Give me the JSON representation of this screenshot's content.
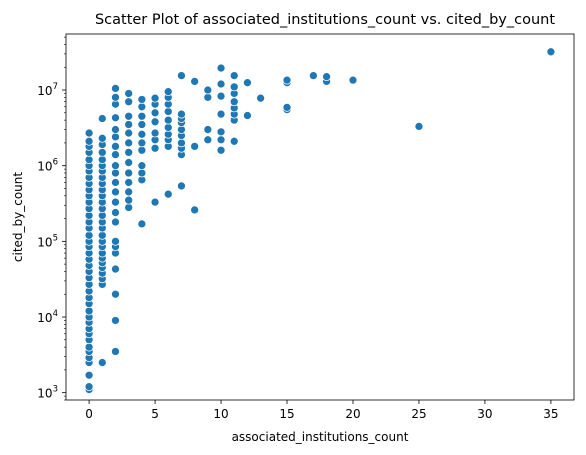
{
  "chart_data": {
    "type": "scatter",
    "title": "Scatter Plot of associated_institutions_count vs. cited_by_count",
    "xlabel": "associated_institutions_count",
    "ylabel": "cited_by_count",
    "x_ticks": [
      0,
      5,
      10,
      15,
      20,
      25,
      30,
      35
    ],
    "y_ticks": [
      1000,
      10000,
      100000,
      1000000,
      10000000
    ],
    "y_tick_labels": [
      {
        "base": "10",
        "exp": "3"
      },
      {
        "base": "10",
        "exp": "4"
      },
      {
        "base": "10",
        "exp": "5"
      },
      {
        "base": "10",
        "exp": "6"
      },
      {
        "base": "10",
        "exp": "7"
      }
    ],
    "xlim": [
      -1.75,
      36.75
    ],
    "ylim": [
      800,
      55000000
    ],
    "y_scale": "log",
    "grid": false,
    "marker_color": "#1f77b4",
    "points": [
      {
        "x": 0,
        "y": 1100
      },
      {
        "x": 0,
        "y": 1200
      },
      {
        "x": 0,
        "y": 1700
      },
      {
        "x": 0,
        "y": 2500
      },
      {
        "x": 0,
        "y": 2900
      },
      {
        "x": 0,
        "y": 3500
      },
      {
        "x": 0,
        "y": 4000
      },
      {
        "x": 0,
        "y": 5000
      },
      {
        "x": 0,
        "y": 6000
      },
      {
        "x": 0,
        "y": 7000
      },
      {
        "x": 0,
        "y": 8500
      },
      {
        "x": 0,
        "y": 10000
      },
      {
        "x": 0,
        "y": 12000
      },
      {
        "x": 0,
        "y": 15000
      },
      {
        "x": 0,
        "y": 18000
      },
      {
        "x": 0,
        "y": 22000
      },
      {
        "x": 0,
        "y": 27000
      },
      {
        "x": 0,
        "y": 33000
      },
      {
        "x": 0,
        "y": 40000
      },
      {
        "x": 0,
        "y": 48000
      },
      {
        "x": 0,
        "y": 58000
      },
      {
        "x": 0,
        "y": 70000
      },
      {
        "x": 0,
        "y": 85000
      },
      {
        "x": 0,
        "y": 100000
      },
      {
        "x": 0,
        "y": 120000
      },
      {
        "x": 0,
        "y": 150000
      },
      {
        "x": 0,
        "y": 180000
      },
      {
        "x": 0,
        "y": 220000
      },
      {
        "x": 0,
        "y": 270000
      },
      {
        "x": 0,
        "y": 330000
      },
      {
        "x": 0,
        "y": 400000
      },
      {
        "x": 0,
        "y": 480000
      },
      {
        "x": 0,
        "y": 580000
      },
      {
        "x": 0,
        "y": 700000
      },
      {
        "x": 0,
        "y": 850000
      },
      {
        "x": 0,
        "y": 1000000
      },
      {
        "x": 0,
        "y": 1200000
      },
      {
        "x": 0,
        "y": 1500000
      },
      {
        "x": 0,
        "y": 1800000
      },
      {
        "x": 0,
        "y": 2100000
      },
      {
        "x": 0,
        "y": 2700000
      },
      {
        "x": 1,
        "y": 2500
      },
      {
        "x": 1,
        "y": 27000
      },
      {
        "x": 1,
        "y": 32000
      },
      {
        "x": 1,
        "y": 38000
      },
      {
        "x": 1,
        "y": 45000
      },
      {
        "x": 1,
        "y": 52000
      },
      {
        "x": 1,
        "y": 60000
      },
      {
        "x": 1,
        "y": 70000
      },
      {
        "x": 1,
        "y": 85000
      },
      {
        "x": 1,
        "y": 100000
      },
      {
        "x": 1,
        "y": 120000
      },
      {
        "x": 1,
        "y": 150000
      },
      {
        "x": 1,
        "y": 180000
      },
      {
        "x": 1,
        "y": 220000
      },
      {
        "x": 1,
        "y": 270000
      },
      {
        "x": 1,
        "y": 330000
      },
      {
        "x": 1,
        "y": 400000
      },
      {
        "x": 1,
        "y": 480000
      },
      {
        "x": 1,
        "y": 580000
      },
      {
        "x": 1,
        "y": 700000
      },
      {
        "x": 1,
        "y": 850000
      },
      {
        "x": 1,
        "y": 1000000
      },
      {
        "x": 1,
        "y": 1200000
      },
      {
        "x": 1,
        "y": 1500000
      },
      {
        "x": 1,
        "y": 1900000
      },
      {
        "x": 1,
        "y": 2300000
      },
      {
        "x": 1,
        "y": 4200000
      },
      {
        "x": 2,
        "y": 3500
      },
      {
        "x": 2,
        "y": 9000
      },
      {
        "x": 2,
        "y": 20000
      },
      {
        "x": 2,
        "y": 43000
      },
      {
        "x": 2,
        "y": 70000
      },
      {
        "x": 2,
        "y": 85000
      },
      {
        "x": 2,
        "y": 100000
      },
      {
        "x": 2,
        "y": 180000
      },
      {
        "x": 2,
        "y": 240000
      },
      {
        "x": 2,
        "y": 330000
      },
      {
        "x": 2,
        "y": 450000
      },
      {
        "x": 2,
        "y": 600000
      },
      {
        "x": 2,
        "y": 800000
      },
      {
        "x": 2,
        "y": 1000000
      },
      {
        "x": 2,
        "y": 1400000
      },
      {
        "x": 2,
        "y": 1800000
      },
      {
        "x": 2,
        "y": 2400000
      },
      {
        "x": 2,
        "y": 3000000
      },
      {
        "x": 2,
        "y": 4300000
      },
      {
        "x": 2,
        "y": 6500000
      },
      {
        "x": 2,
        "y": 8000000
      },
      {
        "x": 2,
        "y": 10500000
      },
      {
        "x": 3,
        "y": 280000
      },
      {
        "x": 3,
        "y": 350000
      },
      {
        "x": 3,
        "y": 450000
      },
      {
        "x": 3,
        "y": 600000
      },
      {
        "x": 3,
        "y": 800000
      },
      {
        "x": 3,
        "y": 1100000
      },
      {
        "x": 3,
        "y": 1500000
      },
      {
        "x": 3,
        "y": 2000000
      },
      {
        "x": 3,
        "y": 2700000
      },
      {
        "x": 3,
        "y": 3500000
      },
      {
        "x": 3,
        "y": 4500000
      },
      {
        "x": 3,
        "y": 7000000
      },
      {
        "x": 3,
        "y": 9000000
      },
      {
        "x": 4,
        "y": 170000
      },
      {
        "x": 4,
        "y": 650000
      },
      {
        "x": 4,
        "y": 800000
      },
      {
        "x": 4,
        "y": 1000000
      },
      {
        "x": 4,
        "y": 1600000
      },
      {
        "x": 4,
        "y": 2000000
      },
      {
        "x": 4,
        "y": 2600000
      },
      {
        "x": 4,
        "y": 3500000
      },
      {
        "x": 4,
        "y": 4500000
      },
      {
        "x": 4,
        "y": 6000000
      },
      {
        "x": 4,
        "y": 7500000
      },
      {
        "x": 5,
        "y": 330000
      },
      {
        "x": 5,
        "y": 1700000
      },
      {
        "x": 5,
        "y": 2200000
      },
      {
        "x": 5,
        "y": 2700000
      },
      {
        "x": 5,
        "y": 3800000
      },
      {
        "x": 5,
        "y": 5000000
      },
      {
        "x": 5,
        "y": 6500000
      },
      {
        "x": 5,
        "y": 7800000
      },
      {
        "x": 6,
        "y": 420000
      },
      {
        "x": 6,
        "y": 1800000
      },
      {
        "x": 6,
        "y": 2200000
      },
      {
        "x": 6,
        "y": 2600000
      },
      {
        "x": 6,
        "y": 3200000
      },
      {
        "x": 6,
        "y": 4000000
      },
      {
        "x": 6,
        "y": 5200000
      },
      {
        "x": 6,
        "y": 6500000
      },
      {
        "x": 6,
        "y": 8000000
      },
      {
        "x": 6,
        "y": 9500000
      },
      {
        "x": 7,
        "y": 540000
      },
      {
        "x": 7,
        "y": 1400000
      },
      {
        "x": 7,
        "y": 1700000
      },
      {
        "x": 7,
        "y": 2000000
      },
      {
        "x": 7,
        "y": 2500000
      },
      {
        "x": 7,
        "y": 3000000
      },
      {
        "x": 7,
        "y": 3700000
      },
      {
        "x": 7,
        "y": 4200000
      },
      {
        "x": 7,
        "y": 4800000
      },
      {
        "x": 7,
        "y": 15500000
      },
      {
        "x": 8,
        "y": 260000
      },
      {
        "x": 8,
        "y": 1800000
      },
      {
        "x": 8,
        "y": 13000000
      },
      {
        "x": 9,
        "y": 2200000
      },
      {
        "x": 9,
        "y": 3000000
      },
      {
        "x": 9,
        "y": 8000000
      },
      {
        "x": 9,
        "y": 10000000
      },
      {
        "x": 10,
        "y": 1600000
      },
      {
        "x": 10,
        "y": 2200000
      },
      {
        "x": 10,
        "y": 2800000
      },
      {
        "x": 10,
        "y": 4800000
      },
      {
        "x": 10,
        "y": 8300000
      },
      {
        "x": 10,
        "y": 12000000
      },
      {
        "x": 10,
        "y": 19500000
      },
      {
        "x": 11,
        "y": 2100000
      },
      {
        "x": 11,
        "y": 4000000
      },
      {
        "x": 11,
        "y": 4800000
      },
      {
        "x": 11,
        "y": 5800000
      },
      {
        "x": 11,
        "y": 7000000
      },
      {
        "x": 11,
        "y": 9000000
      },
      {
        "x": 11,
        "y": 11000000
      },
      {
        "x": 11,
        "y": 15500000
      },
      {
        "x": 12,
        "y": 4600000
      },
      {
        "x": 12,
        "y": 12500000
      },
      {
        "x": 13,
        "y": 7800000
      },
      {
        "x": 15,
        "y": 5500000
      },
      {
        "x": 15,
        "y": 5900000
      },
      {
        "x": 15,
        "y": 12500000
      },
      {
        "x": 15,
        "y": 13500000
      },
      {
        "x": 17,
        "y": 15500000
      },
      {
        "x": 18,
        "y": 13000000
      },
      {
        "x": 18,
        "y": 15000000
      },
      {
        "x": 20,
        "y": 13500000
      },
      {
        "x": 25,
        "y": 3300000
      },
      {
        "x": 35,
        "y": 32000000
      }
    ]
  }
}
